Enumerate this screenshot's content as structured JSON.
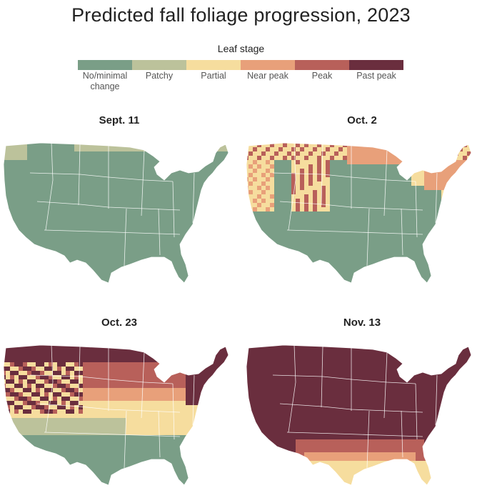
{
  "title": "Predicted fall foliage progression, 2023",
  "legend": {
    "title": "Leaf stage",
    "stages": [
      {
        "label": "No/minimal change",
        "color": "#7a9e87"
      },
      {
        "label": "Patchy",
        "color": "#bcc29b"
      },
      {
        "label": "Partial",
        "color": "#f6dd9e"
      },
      {
        "label": "Near peak",
        "color": "#e8a07a"
      },
      {
        "label": "Peak",
        "color": "#b8605a"
      },
      {
        "label": "Past peak",
        "color": "#6a2e3e"
      }
    ]
  },
  "maps": [
    {
      "label": "Sept. 11"
    },
    {
      "label": "Oct. 2"
    },
    {
      "label": "Oct. 23"
    },
    {
      "label": "Nov. 13"
    }
  ]
}
